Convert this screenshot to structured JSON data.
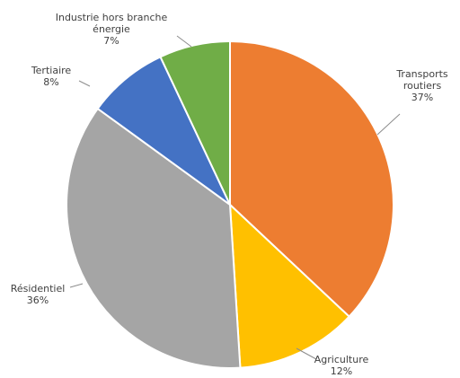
{
  "chart_data": {
    "type": "pie",
    "title": "",
    "slices": [
      {
        "label": "Transports routiers",
        "lines": [
          "Transports",
          "routiers"
        ],
        "value": 37,
        "value_label": "37%",
        "color": "#ED7D31"
      },
      {
        "label": "Agriculture",
        "lines": [
          "Agriculture"
        ],
        "value": 12,
        "value_label": "12%",
        "color": "#FFC000"
      },
      {
        "label": "Résidentiel",
        "lines": [
          "Résidentiel"
        ],
        "value": 36,
        "value_label": "36%",
        "color": "#A5A5A5"
      },
      {
        "label": "Tertiaire",
        "lines": [
          "Tertiaire"
        ],
        "value": 8,
        "value_label": "8%",
        "color": "#4472C4"
      },
      {
        "label": "Industrie hors branche énergie",
        "lines": [
          "Industrie hors branche",
          "énergie"
        ],
        "value": 7,
        "value_label": "7%",
        "color": "#70AD47"
      }
    ],
    "start_angle": "12 o'clock",
    "direction": "clockwise",
    "slice_border": "#ffffff",
    "legend": "none",
    "data_labels": "outside with leader lines"
  }
}
